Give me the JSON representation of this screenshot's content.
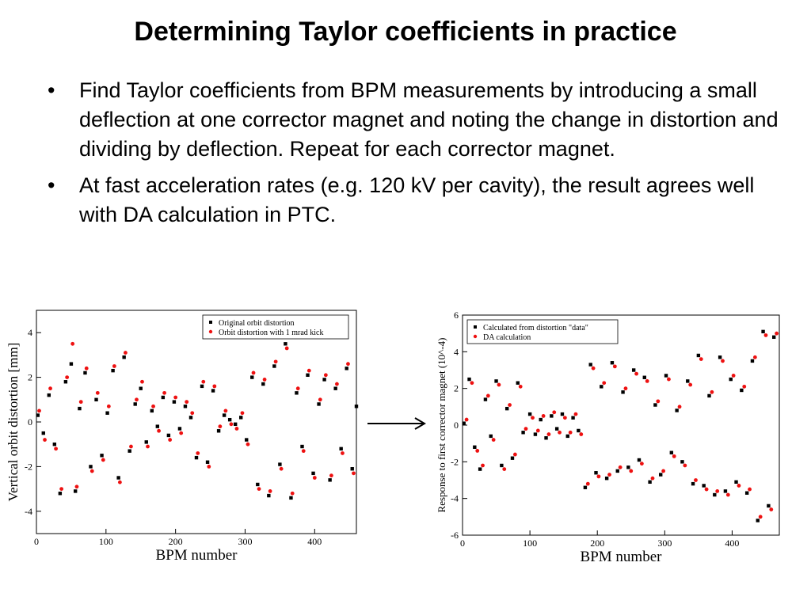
{
  "slide": {
    "title": "Determining Taylor coefficients in practice",
    "bullets": [
      "Find Taylor coefficients from BPM measurements by introducing a small deflection at one corrector magnet and noting the change in distortion and dividing by deflection. Repeat for each corrector magnet.",
      "At fast acceleration rates (e.g. 120 kV per cavity), the result agrees well with DA calculation in PTC."
    ],
    "bullet_symbol": "•"
  },
  "chart_data": [
    {
      "type": "scatter",
      "xlabel": "BPM number",
      "ylabel": "Vertical orbit distortion [mm]",
      "xlim": [
        0,
        460
      ],
      "ylim": [
        -5,
        5
      ],
      "xticks": [
        0,
        100,
        200,
        300,
        400
      ],
      "yticks": [
        -4,
        -2,
        0,
        2,
        4
      ],
      "grid": false,
      "legend_position": "top-right",
      "series": [
        {
          "name": "Original orbit distortion",
          "marker": "square",
          "color": "#000000",
          "x": [
            2,
            10,
            18,
            26,
            34,
            42,
            50,
            56,
            62,
            70,
            78,
            86,
            94,
            102,
            110,
            118,
            126,
            134,
            142,
            150,
            158,
            166,
            174,
            182,
            190,
            198,
            206,
            214,
            222,
            230,
            238,
            246,
            254,
            262,
            270,
            278,
            286,
            294,
            302,
            310,
            318,
            326,
            334,
            342,
            350,
            358,
            366,
            374,
            382,
            390,
            398,
            406,
            414,
            422,
            430,
            438,
            446,
            454,
            460
          ],
          "y": [
            0.3,
            -0.5,
            1.2,
            -1.0,
            -3.2,
            1.8,
            2.6,
            -3.1,
            0.6,
            2.2,
            -2.0,
            1.0,
            -1.5,
            0.4,
            2.3,
            -2.5,
            2.9,
            -1.3,
            0.8,
            1.5,
            -0.9,
            0.5,
            -0.2,
            1.1,
            -0.6,
            0.9,
            -0.3,
            0.7,
            0.2,
            -1.6,
            1.6,
            -1.8,
            1.4,
            -0.4,
            0.3,
            0.1,
            -0.1,
            0.2,
            -0.8,
            2.0,
            -2.8,
            1.7,
            -3.3,
            2.5,
            -1.9,
            3.5,
            -3.4,
            1.3,
            -1.1,
            2.1,
            -2.3,
            0.8,
            1.9,
            -2.6,
            1.5,
            -1.2,
            2.4,
            -2.1,
            0.7
          ]
        },
        {
          "name": "Orbit distortion with 1 mrad kick",
          "marker": "circle",
          "color": "#ee1111",
          "x": [
            4,
            12,
            20,
            28,
            36,
            44,
            52,
            58,
            64,
            72,
            80,
            88,
            96,
            104,
            112,
            120,
            128,
            136,
            144,
            152,
            160,
            168,
            176,
            184,
            192,
            200,
            208,
            216,
            224,
            232,
            240,
            248,
            256,
            264,
            272,
            280,
            288,
            296,
            304,
            312,
            320,
            328,
            336,
            344,
            352,
            360,
            368,
            376,
            384,
            392,
            400,
            408,
            416,
            424,
            432,
            440,
            448,
            456
          ],
          "y": [
            0.5,
            -0.8,
            1.5,
            -1.2,
            -3.0,
            2.0,
            3.5,
            -2.9,
            0.9,
            2.4,
            -2.2,
            1.3,
            -1.7,
            0.7,
            2.5,
            -2.7,
            3.1,
            -1.1,
            1.0,
            1.8,
            -1.1,
            0.7,
            -0.4,
            1.3,
            -0.8,
            1.1,
            -0.5,
            0.9,
            0.4,
            -1.4,
            1.8,
            -2.0,
            1.6,
            -0.2,
            0.5,
            -0.1,
            -0.3,
            0.4,
            -1.0,
            2.2,
            -3.0,
            1.9,
            -3.1,
            2.7,
            -2.1,
            3.3,
            -3.2,
            1.5,
            -1.3,
            2.3,
            -2.5,
            1.0,
            2.1,
            -2.4,
            1.7,
            -1.4,
            2.6,
            -2.3
          ]
        }
      ]
    },
    {
      "type": "scatter",
      "xlabel": "BPM number",
      "ylabel": "Response to first corrector magnet (10^-4)",
      "xlim": [
        0,
        470
      ],
      "ylim": [
        -6,
        6
      ],
      "xticks": [
        0,
        100,
        200,
        300,
        400
      ],
      "yticks": [
        -6,
        -4,
        -2,
        0,
        2,
        4,
        6
      ],
      "grid": false,
      "legend_position": "top-left",
      "series": [
        {
          "name": "Calculated from distortion \"data\"",
          "marker": "square",
          "color": "#000000",
          "x": [
            2,
            10,
            18,
            26,
            34,
            42,
            50,
            58,
            66,
            74,
            82,
            90,
            100,
            108,
            116,
            124,
            132,
            140,
            148,
            156,
            164,
            172,
            182,
            190,
            198,
            206,
            214,
            222,
            230,
            238,
            246,
            254,
            262,
            270,
            278,
            286,
            294,
            302,
            310,
            318,
            326,
            334,
            342,
            350,
            358,
            366,
            374,
            382,
            390,
            398,
            406,
            414,
            422,
            430,
            438,
            446,
            454,
            462
          ],
          "y": [
            0.1,
            2.5,
            -1.2,
            -2.4,
            1.4,
            -0.6,
            2.4,
            -2.2,
            0.9,
            -1.8,
            2.3,
            -0.4,
            0.6,
            -0.5,
            0.3,
            -0.7,
            0.5,
            -0.2,
            0.6,
            -0.6,
            0.4,
            -0.3,
            -3.4,
            3.3,
            -2.6,
            2.1,
            -2.9,
            3.4,
            -2.5,
            1.8,
            -2.3,
            3.0,
            -1.9,
            2.6,
            -3.1,
            1.1,
            -2.7,
            2.7,
            -1.5,
            0.8,
            -2.0,
            2.4,
            -3.2,
            3.8,
            -3.3,
            1.6,
            -3.8,
            3.7,
            -3.6,
            2.5,
            -3.1,
            1.9,
            -3.7,
            3.5,
            -5.2,
            5.1,
            -4.4,
            4.8
          ]
        },
        {
          "name": "DA calculation",
          "marker": "circle",
          "color": "#ee1111",
          "x": [
            6,
            14,
            22,
            30,
            38,
            46,
            54,
            62,
            70,
            78,
            86,
            94,
            104,
            112,
            120,
            128,
            136,
            144,
            152,
            160,
            168,
            176,
            186,
            194,
            202,
            210,
            218,
            226,
            234,
            242,
            250,
            258,
            266,
            274,
            282,
            290,
            298,
            306,
            314,
            322,
            330,
            338,
            346,
            354,
            362,
            370,
            378,
            386,
            394,
            402,
            410,
            418,
            426,
            434,
            442,
            450,
            458,
            466
          ],
          "y": [
            0.3,
            2.3,
            -1.4,
            -2.2,
            1.6,
            -0.8,
            2.2,
            -2.4,
            1.1,
            -1.6,
            2.1,
            -0.2,
            0.4,
            -0.3,
            0.5,
            -0.5,
            0.7,
            -0.4,
            0.4,
            -0.4,
            0.6,
            -0.5,
            -3.2,
            3.1,
            -2.8,
            2.3,
            -2.7,
            3.2,
            -2.3,
            2.0,
            -2.5,
            2.8,
            -2.1,
            2.4,
            -2.9,
            1.3,
            -2.5,
            2.5,
            -1.7,
            1.0,
            -2.2,
            2.2,
            -3.0,
            3.6,
            -3.5,
            1.8,
            -3.6,
            3.5,
            -3.8,
            2.7,
            -3.3,
            2.1,
            -3.5,
            3.7,
            -5.0,
            4.9,
            -4.6,
            5.0
          ]
        }
      ]
    }
  ]
}
